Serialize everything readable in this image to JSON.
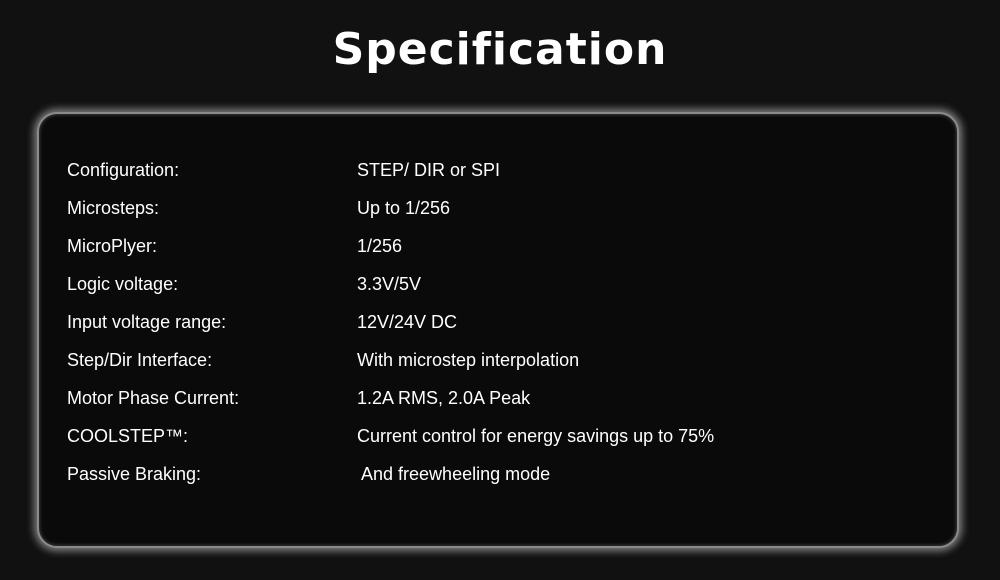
{
  "title": "Specification",
  "specs": [
    {
      "label": "Configuration:",
      "value": "STEP/ DIR or SPI"
    },
    {
      "label": "Microsteps:",
      "value": "Up to 1/256"
    },
    {
      "label": "MicroPlyer:",
      "value": "1/256"
    },
    {
      "label": "Logic voltage:",
      "value": "3.3V/5V"
    },
    {
      "label": "Input voltage range:",
      "value": "12V/24V DC"
    },
    {
      "label": "Step/Dir Interface:",
      "value": "With microstep interpolation"
    },
    {
      "label": "Motor Phase Current:",
      "value": "1.2A RMS, 2.0A Peak"
    },
    {
      "label": "COOLSTEP™:",
      "value": "Current control for energy savings up to 75%"
    },
    {
      "label": "Passive Braking:",
      "value": " And freewheeling mode"
    }
  ]
}
